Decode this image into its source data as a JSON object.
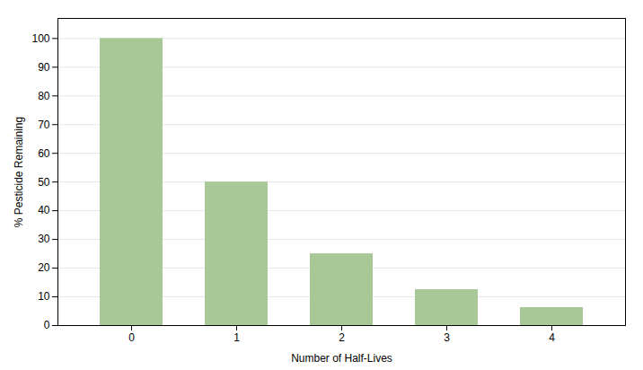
{
  "chart_data": {
    "type": "bar",
    "categories": [
      "0",
      "1",
      "2",
      "3",
      "4"
    ],
    "values": [
      100,
      50,
      25,
      12.5,
      6.25
    ],
    "color": "#A8C898",
    "xlabel": "Number of Half-Lives",
    "ylabel": "% Pesticide Remaining",
    "ylim": [
      0,
      107
    ],
    "yticks": [
      0,
      10,
      20,
      30,
      40,
      50,
      60,
      70,
      80,
      90,
      100
    ],
    "grid": true
  }
}
